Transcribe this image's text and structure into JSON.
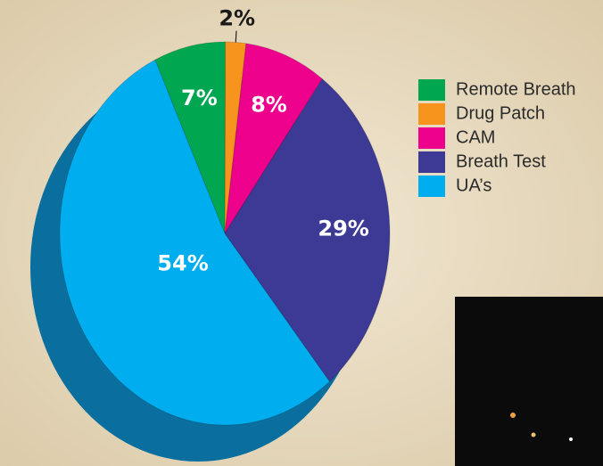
{
  "chart_data": {
    "type": "pie",
    "categories": [
      "Remote Breath",
      "Drug Patch",
      "CAM",
      "Breath Test",
      "UA’s"
    ],
    "values": [
      7,
      2,
      8,
      29,
      54
    ],
    "value_labels": [
      "7%",
      "2%",
      "8%",
      "29%",
      "54%"
    ],
    "colors": [
      "#00a650",
      "#f7941d",
      "#ec008c",
      "#3d3a96",
      "#00aeef"
    ],
    "legend": "right"
  }
}
